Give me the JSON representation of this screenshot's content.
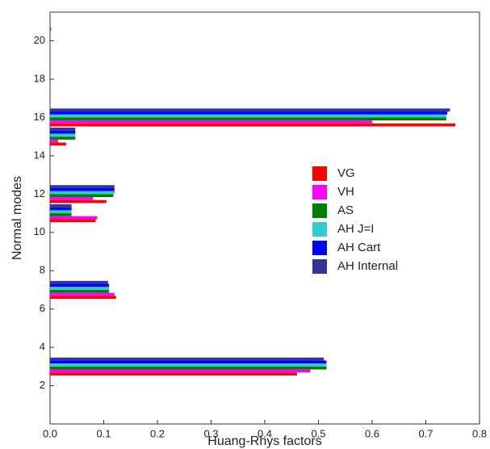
{
  "chart_data": {
    "type": "hbar",
    "x_label": "Huang-Rhys factors",
    "y_label": "Normal modes",
    "modes": [
      3,
      7,
      11,
      12,
      15,
      16,
      21
    ],
    "series": [
      {
        "name": "VG",
        "color": "#ff0000",
        "values": [
          0.46,
          0.123,
          0.085,
          0.105,
          0.03,
          0.755,
          0.002
        ]
      },
      {
        "name": "VH",
        "color": "#ff00ff",
        "values": [
          0.485,
          0.12,
          0.088,
          0.08,
          0.015,
          0.6,
          0
        ]
      },
      {
        "name": "AS",
        "color": "#008000",
        "values": [
          0.515,
          0.11,
          0.04,
          0.118,
          0.047,
          0.738,
          0
        ]
      },
      {
        "name": "AH J=I",
        "color": "#33cccc",
        "values": [
          0.515,
          0.11,
          0.04,
          0.12,
          0.047,
          0.738,
          0
        ]
      },
      {
        "name": "AH Cart",
        "color": "#0000ff",
        "values": [
          0.515,
          0.11,
          0.04,
          0.12,
          0.047,
          0.74,
          0
        ]
      },
      {
        "name": "AH Internal",
        "color": "#333399",
        "values": [
          0.51,
          0.108,
          0.04,
          0.12,
          0.047,
          0.745,
          0
        ]
      }
    ],
    "xlim": [
      0,
      0.8
    ],
    "xticks": [
      {
        "value": 0,
        "label": "0.0"
      },
      0.1,
      0.2,
      0.3,
      0.4,
      0.5,
      0.6,
      0.7,
      0.8
    ],
    "ylim": [
      0,
      21.5
    ],
    "yticks": [
      2,
      4,
      6,
      8,
      10,
      12,
      14,
      16,
      18,
      20
    ]
  }
}
